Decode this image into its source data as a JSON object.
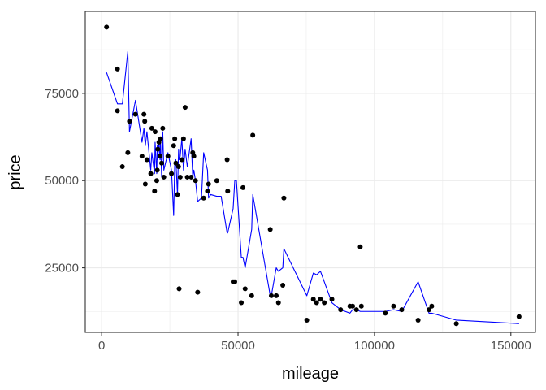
{
  "chart_data": {
    "type": "scatter",
    "xlabel": "mileage",
    "ylabel": "price",
    "xlim": [
      -6000,
      159000
    ],
    "ylim": [
      6500,
      98500
    ],
    "x_ticks": [
      0,
      50000,
      100000,
      150000
    ],
    "x_tick_labels": [
      "0",
      "50000",
      "100000",
      "150000"
    ],
    "y_ticks": [
      25000,
      50000,
      75000
    ],
    "y_tick_labels": [
      "25000",
      "50000",
      "75000"
    ],
    "grid": true,
    "legend": "none",
    "colors": {
      "points": "#000000",
      "line": "#0000ff",
      "grid": "#ebebeb",
      "panel_border": "#333333"
    },
    "series": [
      {
        "type": "scatter",
        "points": [
          [
            1800,
            94000
          ],
          [
            5800,
            82000
          ],
          [
            5800,
            70000
          ],
          [
            7600,
            54000
          ],
          [
            9600,
            58000
          ],
          [
            10200,
            67000
          ],
          [
            12400,
            69000
          ],
          [
            14800,
            57000
          ],
          [
            15500,
            69000
          ],
          [
            15800,
            67000
          ],
          [
            16000,
            49000
          ],
          [
            16600,
            56000
          ],
          [
            18000,
            52000
          ],
          [
            18400,
            65000
          ],
          [
            19400,
            47000
          ],
          [
            19600,
            64000
          ],
          [
            20200,
            50000
          ],
          [
            20400,
            53000
          ],
          [
            20600,
            59000
          ],
          [
            21000,
            61000
          ],
          [
            21400,
            57000
          ],
          [
            21600,
            62000
          ],
          [
            22000,
            55000
          ],
          [
            22400,
            65000
          ],
          [
            22800,
            51000
          ],
          [
            24300,
            57000
          ],
          [
            25600,
            52000
          ],
          [
            26400,
            60000
          ],
          [
            26800,
            62000
          ],
          [
            27200,
            55000
          ],
          [
            27800,
            46000
          ],
          [
            28200,
            54000
          ],
          [
            28400,
            19000
          ],
          [
            28800,
            51000
          ],
          [
            29400,
            56000
          ],
          [
            30000,
            62000
          ],
          [
            30600,
            71000
          ],
          [
            31400,
            51000
          ],
          [
            32800,
            51000
          ],
          [
            33400,
            58000
          ],
          [
            33800,
            57000
          ],
          [
            34400,
            50000
          ],
          [
            35200,
            18000
          ],
          [
            37400,
            45000
          ],
          [
            38800,
            47000
          ],
          [
            39200,
            49000
          ],
          [
            42200,
            50000
          ],
          [
            46000,
            56000
          ],
          [
            46200,
            47000
          ],
          [
            48200,
            21000
          ],
          [
            48800,
            21000
          ],
          [
            51200,
            15000
          ],
          [
            51800,
            48000
          ],
          [
            52600,
            19000
          ],
          [
            55000,
            17000
          ],
          [
            55400,
            63000
          ],
          [
            61800,
            36000
          ],
          [
            62200,
            17000
          ],
          [
            64000,
            17000
          ],
          [
            64800,
            15000
          ],
          [
            66400,
            20000
          ],
          [
            66800,
            45000
          ],
          [
            75200,
            10000
          ],
          [
            77600,
            16000
          ],
          [
            78800,
            15000
          ],
          [
            80200,
            16000
          ],
          [
            81600,
            15000
          ],
          [
            84400,
            16000
          ],
          [
            87600,
            13000
          ],
          [
            91000,
            14000
          ],
          [
            92000,
            14000
          ],
          [
            93400,
            13000
          ],
          [
            94800,
            31000
          ],
          [
            95200,
            14000
          ],
          [
            104000,
            12000
          ],
          [
            107000,
            14000
          ],
          [
            110000,
            13000
          ],
          [
            116000,
            10000
          ],
          [
            120000,
            13000
          ],
          [
            121000,
            14000
          ],
          [
            130000,
            9000
          ],
          [
            153000,
            11000
          ]
        ]
      },
      {
        "type": "line",
        "points": [
          [
            1800,
            81000
          ],
          [
            5800,
            72000
          ],
          [
            7600,
            72000
          ],
          [
            9600,
            87000
          ],
          [
            10200,
            64000
          ],
          [
            12400,
            73000
          ],
          [
            14800,
            61000
          ],
          [
            15500,
            65000
          ],
          [
            16000,
            60000
          ],
          [
            16600,
            64000
          ],
          [
            18000,
            53000
          ],
          [
            18400,
            58000
          ],
          [
            19400,
            52000
          ],
          [
            19600,
            61000
          ],
          [
            20200,
            52000
          ],
          [
            20400,
            60000
          ],
          [
            20600,
            56000
          ],
          [
            21000,
            62000
          ],
          [
            21400,
            56000
          ],
          [
            21600,
            61000
          ],
          [
            22000,
            51000
          ],
          [
            22400,
            64000
          ],
          [
            22800,
            53000
          ],
          [
            24300,
            58000
          ],
          [
            25600,
            53000
          ],
          [
            26400,
            40000
          ],
          [
            26800,
            55000
          ],
          [
            27200,
            56000
          ],
          [
            27800,
            46000
          ],
          [
            28200,
            59000
          ],
          [
            28400,
            56000
          ],
          [
            28800,
            57000
          ],
          [
            29400,
            62000
          ],
          [
            30000,
            53000
          ],
          [
            30600,
            59000
          ],
          [
            31400,
            54000
          ],
          [
            32800,
            62000
          ],
          [
            33400,
            51000
          ],
          [
            33800,
            53000
          ],
          [
            34400,
            50000
          ],
          [
            35200,
            44000
          ],
          [
            36600,
            45000
          ],
          [
            37400,
            58000
          ],
          [
            38800,
            53000
          ],
          [
            39200,
            45000
          ],
          [
            40000,
            46000
          ],
          [
            42200,
            45500
          ],
          [
            43800,
            45500
          ],
          [
            46000,
            35000
          ],
          [
            46200,
            35000
          ],
          [
            48200,
            42000
          ],
          [
            48800,
            50000
          ],
          [
            49400,
            50000
          ],
          [
            51200,
            28000
          ],
          [
            51800,
            28000
          ],
          [
            52600,
            25000
          ],
          [
            55000,
            36000
          ],
          [
            55400,
            46000
          ],
          [
            61800,
            17000
          ],
          [
            62200,
            17000
          ],
          [
            64000,
            25000
          ],
          [
            64800,
            24000
          ],
          [
            66400,
            25000
          ],
          [
            66800,
            30500
          ],
          [
            75200,
            17000
          ],
          [
            77600,
            23500
          ],
          [
            78800,
            23000
          ],
          [
            80200,
            24000
          ],
          [
            81600,
            21000
          ],
          [
            84400,
            15000
          ],
          [
            87600,
            13000
          ],
          [
            91000,
            12000
          ],
          [
            92000,
            13000
          ],
          [
            93400,
            13000
          ],
          [
            94800,
            12500
          ],
          [
            95200,
            12500
          ],
          [
            104000,
            12500
          ],
          [
            107000,
            13000
          ],
          [
            110000,
            12500
          ],
          [
            116000,
            21000
          ],
          [
            120000,
            12000
          ],
          [
            121000,
            12000
          ],
          [
            130000,
            10000
          ],
          [
            153000,
            9000
          ]
        ]
      }
    ]
  }
}
